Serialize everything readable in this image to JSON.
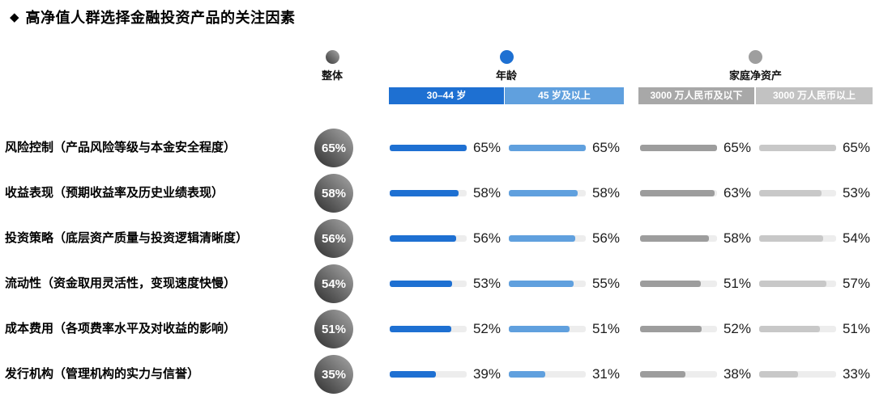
{
  "title": {
    "bullet": "◆",
    "text": "高净值人群选择金融投资产品的关注因素"
  },
  "groups": {
    "overall": {
      "label": "整体"
    },
    "age": {
      "label": "年龄",
      "sub": [
        "30–44 岁",
        "45 岁及以上"
      ]
    },
    "net_worth": {
      "label": "家庭净资产",
      "sub": [
        "3000 万人民币及以下",
        "3000 万人民币以上"
      ]
    }
  },
  "colors": {
    "age_young_blue": "#1e70d2",
    "age_older_blue": "#60a0de",
    "networth_low_gray": "#9d9d9d",
    "networth_high_gray": "#c8c8c8",
    "track_gray": "#ededed",
    "overall_circle_gradient": [
      "#a8a8a8",
      "#2f2f2f"
    ]
  },
  "chart_data": {
    "type": "bar",
    "orientation": "horizontal",
    "title": "高净值人群选择金融投资产品的关注因素",
    "categories": [
      "风险控制（产品风险等级与本金安全程度）",
      "收益表现（预期收益率及历史业绩表现）",
      "投资策略（底层资产质量与投资逻辑清晰度）",
      "流动性（资金取用灵活性，变现速度快慢）",
      "成本费用（各项费率水平及对收益的影响）",
      "发行机构（管理机构的实力与信誉）"
    ],
    "series": [
      {
        "name": "整体",
        "group": "整体",
        "color": "#4a4a4a",
        "values": [
          65,
          58,
          56,
          54,
          51,
          35
        ]
      },
      {
        "name": "30–44 岁",
        "group": "年龄",
        "color": "#1e70d2",
        "values": [
          65,
          58,
          56,
          53,
          52,
          39
        ]
      },
      {
        "name": "45 岁及以上",
        "group": "年龄",
        "color": "#60a0de",
        "values": [
          65,
          58,
          56,
          55,
          51,
          31
        ]
      },
      {
        "name": "3000 万人民币及以下",
        "group": "家庭净资产",
        "color": "#9d9d9d",
        "values": [
          65,
          63,
          58,
          51,
          52,
          38
        ]
      },
      {
        "name": "3000 万人民币以上",
        "group": "家庭净资产",
        "color": "#c8c8c8",
        "values": [
          65,
          53,
          54,
          57,
          51,
          33
        ]
      }
    ],
    "value_suffix": "%",
    "scale_max": 65,
    "xlim": [
      0,
      65
    ],
    "grid": false,
    "legend_position": "top"
  }
}
